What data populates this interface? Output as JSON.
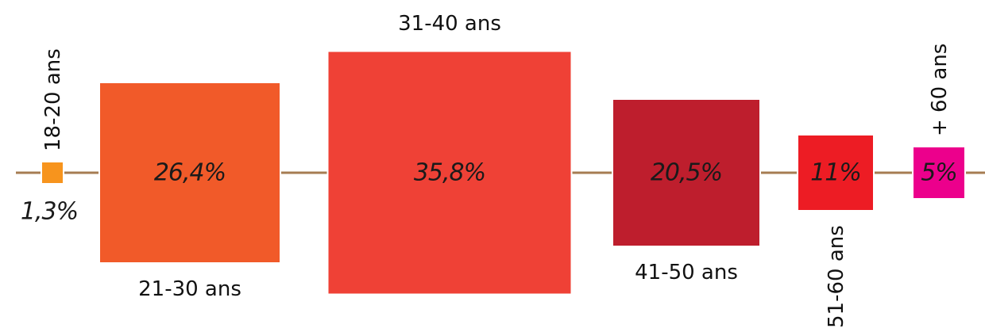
{
  "chart_data": {
    "type": "bar",
    "encoding": "square-area",
    "categories": [
      "18-20 ans",
      "21-30 ans",
      "31-40 ans",
      "41-50 ans",
      "51-60 ans",
      "+ 60 ans"
    ],
    "values": [
      1.3,
      26.4,
      35.8,
      20.5,
      11,
      5
    ],
    "value_labels": [
      "1,3%",
      "26,4%",
      "35,8%",
      "20,5%",
      "11%",
      "5%"
    ],
    "colors": [
      "#f7941d",
      "#f15a29",
      "#ef4136",
      "#be1e2d",
      "#ed1c24",
      "#ec008c"
    ],
    "connector_color": "#a67c52",
    "title": "",
    "xlabel": "",
    "ylabel": ""
  }
}
